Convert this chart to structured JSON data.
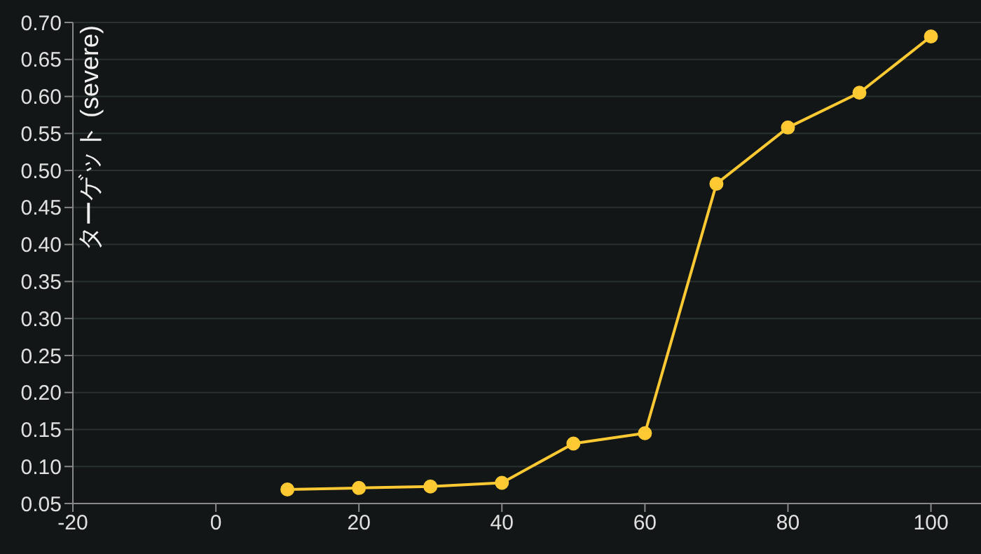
{
  "chart_data": {
    "type": "line",
    "ylabel": "ターゲット (severe)",
    "x": [
      10,
      20,
      30,
      40,
      50,
      60,
      70,
      80,
      90,
      100
    ],
    "series": [
      {
        "color": "#ffc933",
        "values": [
          0.069,
          0.071,
          0.073,
          0.078,
          0.131,
          0.145,
          0.482,
          0.558,
          0.605,
          0.681
        ]
      }
    ],
    "xlim": [
      -20,
      107
    ],
    "xticks": [
      -20,
      0,
      20,
      40,
      60,
      80,
      100
    ],
    "ylim": [
      0.05,
      0.7
    ],
    "yticks": [
      0.05,
      {
        "value": 0.1,
        "label": "0.10"
      },
      0.15,
      {
        "value": 0.2,
        "label": "0.20"
      },
      0.25,
      {
        "value": 0.3,
        "label": "0.30"
      },
      0.35,
      {
        "value": 0.4,
        "label": "0.40"
      },
      0.45,
      {
        "value": 0.5,
        "label": "0.50"
      },
      0.55,
      {
        "value": 0.6,
        "label": "0.60"
      },
      0.65,
      {
        "value": 0.7,
        "label": "0.70"
      }
    ],
    "grid": "y",
    "marker": "circle",
    "line_style": "solid",
    "legend": false
  }
}
